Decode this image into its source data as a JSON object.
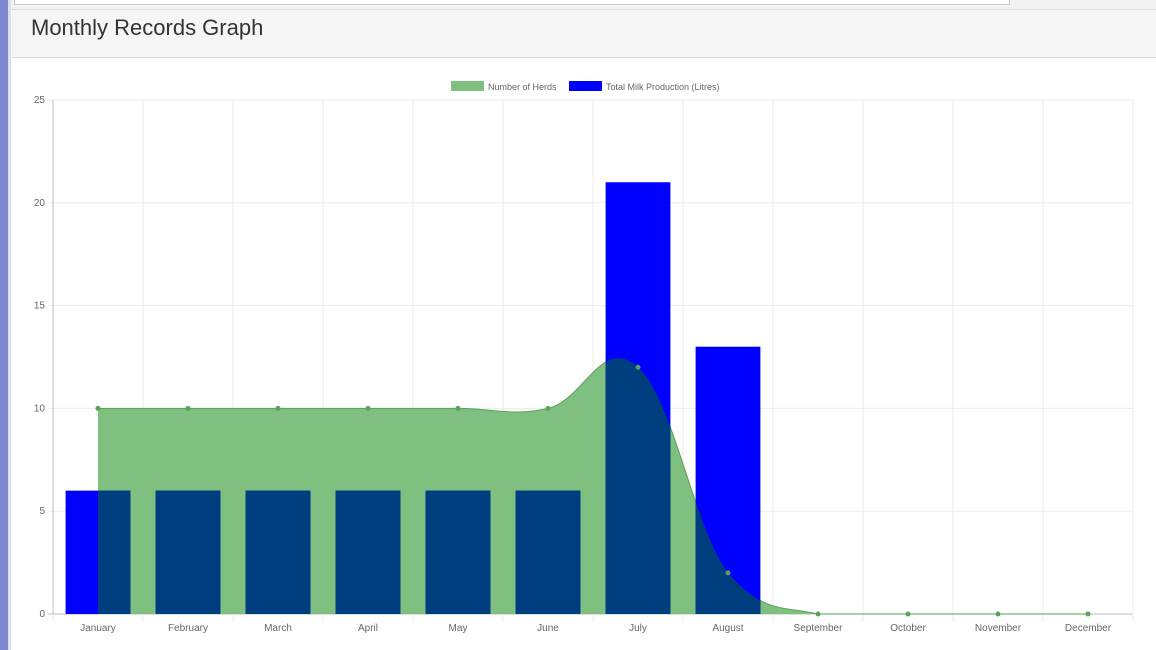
{
  "panel": {
    "title": "Monthly Records Graph"
  },
  "chart_data": {
    "type": "bar",
    "categories": [
      "January",
      "February",
      "March",
      "April",
      "May",
      "June",
      "July",
      "August",
      "September",
      "October",
      "November",
      "December"
    ],
    "series": [
      {
        "name": "Number of Herds",
        "type": "area",
        "color": "#7fbf7f",
        "line_color": "#5aa35a",
        "values": [
          10,
          10,
          10,
          10,
          10,
          10,
          12,
          2,
          0,
          0,
          0,
          0
        ]
      },
      {
        "name": "Total Milk Production (Litres)",
        "type": "bar",
        "color": "#0000ff",
        "values": [
          6,
          6,
          6,
          6,
          6,
          6,
          21,
          13,
          0,
          0,
          0,
          0
        ]
      }
    ],
    "ylim": [
      0,
      25
    ],
    "yticks": [
      0,
      5,
      10,
      15,
      20,
      25
    ],
    "grid": true,
    "legend_position": "top-center",
    "title": "",
    "xlabel": "",
    "ylabel": ""
  }
}
